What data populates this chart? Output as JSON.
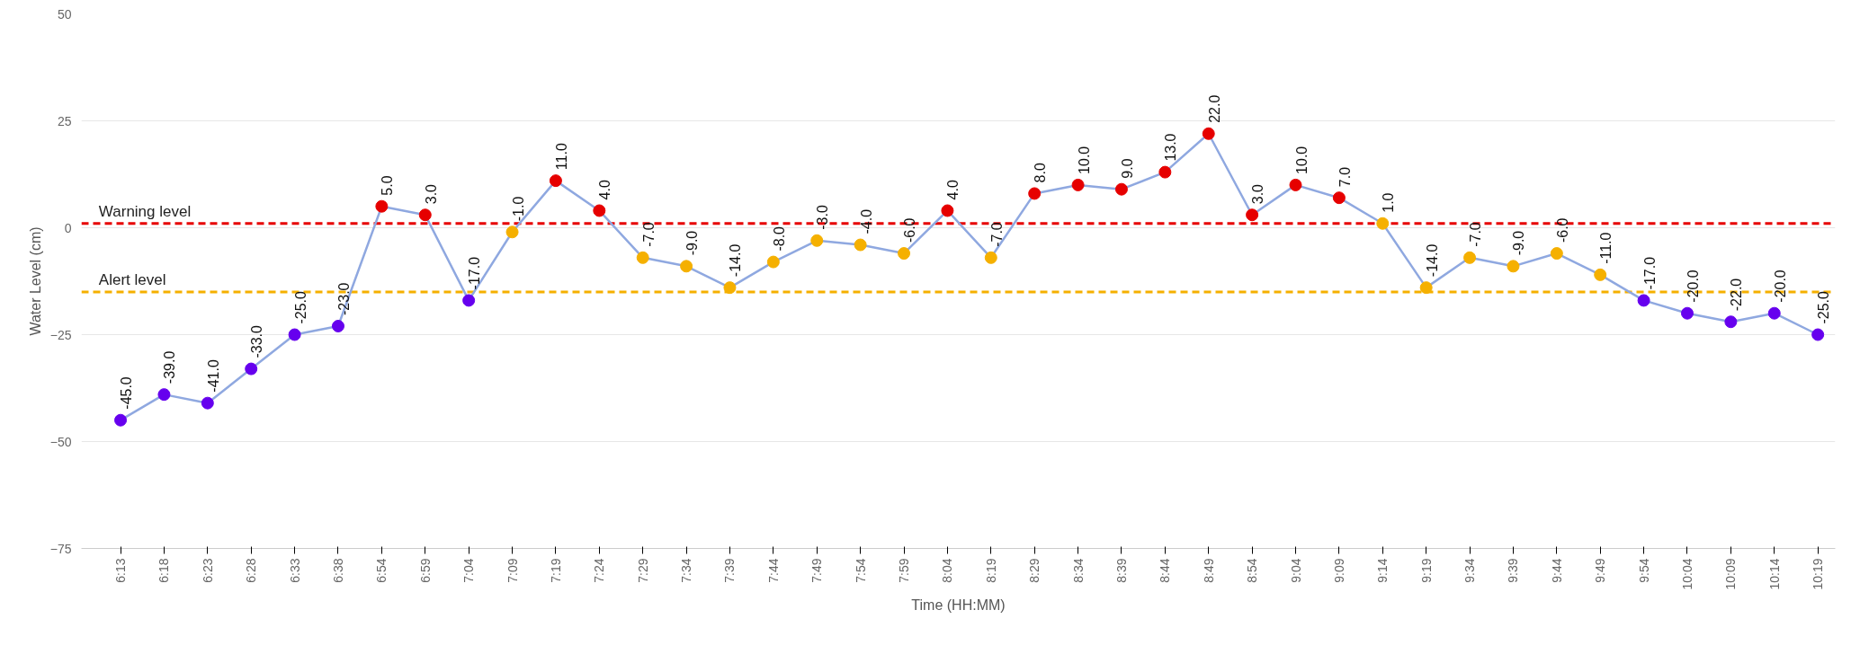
{
  "chart_data": {
    "type": "line",
    "xlabel": "Time (HH:MM)",
    "ylabel": "Water Level (cm)",
    "categories": [
      "6:13",
      "6:18",
      "6:23",
      "6:28",
      "6:33",
      "6:38",
      "6:54",
      "6:59",
      "7:04",
      "7:09",
      "7:19",
      "7:24",
      "7:29",
      "7:34",
      "7:39",
      "7:44",
      "7:49",
      "7:54",
      "7:59",
      "8:04",
      "8:19",
      "8:29",
      "8:34",
      "8:39",
      "8:44",
      "8:49",
      "8:54",
      "9:04",
      "9:09",
      "9:14",
      "9:19",
      "9:34",
      "9:39",
      "9:44",
      "9:49",
      "9:54",
      "10:04",
      "10:09",
      "10:14",
      "10:19"
    ],
    "series": [
      {
        "color": "#8fa8e0",
        "values": [
          -45,
          -39,
          -41,
          -33,
          -25,
          -23,
          5,
          3,
          -17,
          -1,
          11,
          4,
          -7,
          -9,
          -14,
          -8,
          -3,
          -4,
          -6,
          4,
          -7,
          8,
          10,
          9,
          13,
          22,
          3,
          10,
          7,
          1,
          -14,
          -7,
          -9,
          -6,
          -11,
          -17,
          -20,
          -22,
          -20,
          -25
        ],
        "colors": [
          "#6600ee",
          "#6600ee",
          "#6600ee",
          "#6600ee",
          "#6600ee",
          "#6600ee",
          "#e60000",
          "#e60000",
          "#6600ee",
          "#f5b000",
          "#e60000",
          "#e60000",
          "#f5b000",
          "#f5b000",
          "#f5b000",
          "#f5b000",
          "#f5b000",
          "#f5b000",
          "#f5b000",
          "#e60000",
          "#f5b000",
          "#e60000",
          "#e60000",
          "#e60000",
          "#e60000",
          "#e60000",
          "#e60000",
          "#e60000",
          "#e60000",
          "#f5b000",
          "#f5b000",
          "#f5b000",
          "#f5b000",
          "#f5b000",
          "#f5b000",
          "#6600ee",
          "#6600ee",
          "#6600ee",
          "#6600ee",
          "#6600ee"
        ],
        "value_labels": [
          "-45.0",
          "-39.0",
          "-41.0",
          "-33.0",
          "-25.0",
          "-23.0",
          "5.0",
          "3.0",
          "-17.0",
          "-1.0",
          "11.0",
          "4.0",
          "-7.0",
          "-9.0",
          "-14.0",
          "-8.0",
          "-3.0",
          "-4.0",
          "-6.0",
          "4.0",
          "-7.0",
          "8.0",
          "10.0",
          "9.0",
          "13.0",
          "22.0",
          "3.0",
          "10.0",
          "7.0",
          "1.0",
          "-14.0",
          "-7.0",
          "-9.0",
          "-6.0",
          "-11.0",
          "-17.0",
          "-20.0",
          "-22.0",
          "-20.0",
          "-25.0"
        ]
      }
    ],
    "ylim": [
      -75,
      50
    ],
    "yticks": [
      -75,
      -50,
      -25,
      0,
      25,
      50
    ],
    "grid": "y",
    "marker": "circle",
    "line_style": "solid",
    "ref_lines": [
      {
        "axis": "y",
        "value": 1,
        "label": "Warning level",
        "color": "#e60000",
        "line_style": "dashed"
      },
      {
        "axis": "y",
        "value": -15,
        "label": "Alert level",
        "color": "#f5b000",
        "line_style": "dashed"
      }
    ]
  }
}
